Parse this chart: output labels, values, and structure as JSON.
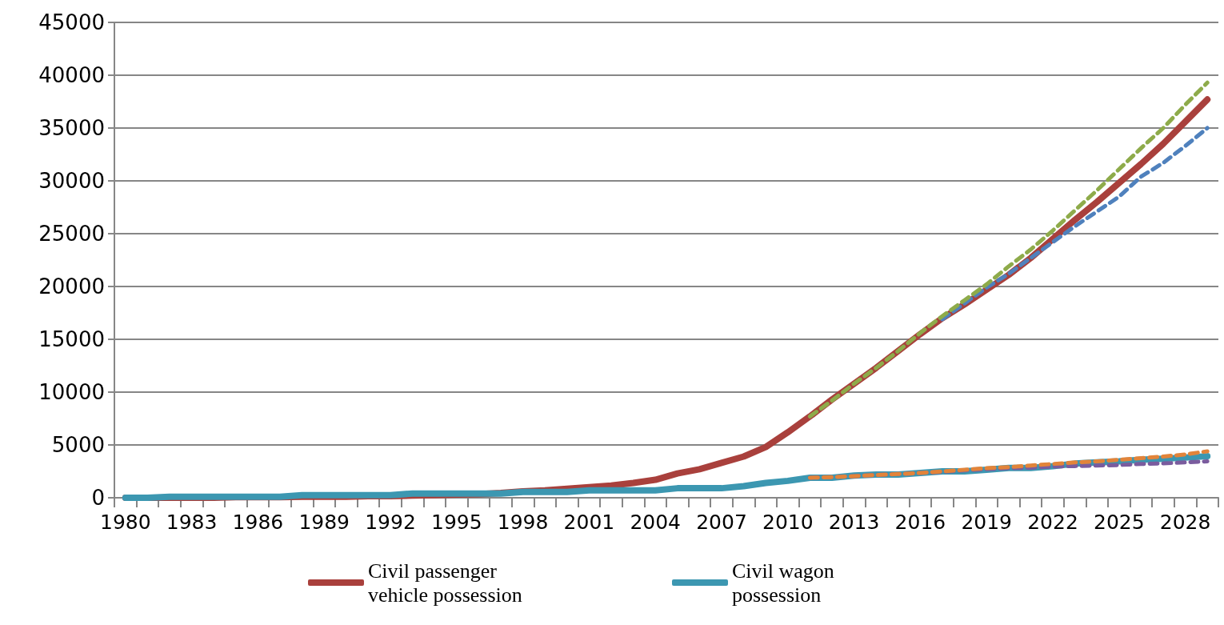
{
  "chart_data": {
    "type": "line",
    "categories": [
      "1980",
      null,
      null,
      "1983",
      null,
      null,
      "1986",
      null,
      null,
      "1989",
      null,
      null,
      "1992",
      null,
      null,
      "1995",
      null,
      null,
      "1998",
      null,
      null,
      "2001",
      null,
      null,
      "2004",
      null,
      null,
      "2007",
      null,
      null,
      "2010",
      null,
      null,
      "2013",
      null,
      null,
      "2016",
      null,
      null,
      "2019",
      null,
      null,
      "2022",
      null,
      null,
      "2025",
      null,
      null,
      "2028",
      null
    ],
    "series": [
      {
        "color": "#4f81bd",
        "line_style": "dashed",
        "values": [
          null,
          null,
          null,
          null,
          null,
          null,
          null,
          null,
          null,
          null,
          null,
          null,
          null,
          null,
          null,
          null,
          null,
          null,
          null,
          null,
          null,
          null,
          null,
          null,
          null,
          null,
          null,
          null,
          null,
          null,
          null,
          null,
          null,
          null,
          null,
          null,
          null,
          16900,
          18400,
          19900,
          21200,
          22700,
          24200,
          25700,
          27100,
          28500,
          30400,
          31700,
          33300,
          35000
        ]
      },
      {
        "name": "Civil passenger vehicle possession",
        "color": "#a9403c",
        "line_style": "solid",
        "values": [
          0,
          0,
          0,
          0,
          0,
          50,
          50,
          50,
          100,
          100,
          100,
          150,
          150,
          200,
          250,
          300,
          350,
          450,
          600,
          700,
          850,
          1000,
          1150,
          1400,
          1700,
          2300,
          2700,
          3300,
          3900,
          4800,
          6200,
          7700,
          9300,
          10800,
          12300,
          13900,
          15500,
          17000,
          18300,
          19700,
          21100,
          22700,
          24500,
          26300,
          28000,
          29800,
          31600,
          33500,
          35600,
          37700
        ]
      },
      {
        "color": "#8eab4a",
        "line_style": "dashed",
        "values": [
          null,
          null,
          null,
          null,
          null,
          null,
          null,
          null,
          null,
          null,
          null,
          null,
          null,
          null,
          null,
          null,
          null,
          null,
          null,
          null,
          null,
          null,
          null,
          null,
          null,
          null,
          null,
          null,
          null,
          null,
          null,
          7700,
          9200,
          10800,
          12300,
          13900,
          15600,
          17200,
          18700,
          20200,
          21900,
          23500,
          25300,
          27200,
          29100,
          31100,
          33100,
          35000,
          37200,
          39300
        ]
      },
      {
        "color": "#7a5c9e",
        "line_style": "dashed",
        "values": [
          null,
          null,
          null,
          null,
          null,
          null,
          null,
          null,
          null,
          null,
          null,
          null,
          null,
          null,
          null,
          null,
          null,
          null,
          null,
          null,
          null,
          null,
          null,
          null,
          null,
          null,
          null,
          null,
          null,
          null,
          null,
          1900,
          1950,
          2050,
          2150,
          2250,
          2350,
          2450,
          2600,
          2700,
          2800,
          2850,
          2950,
          3000,
          3050,
          3100,
          3200,
          3250,
          3350,
          3450
        ]
      },
      {
        "name": "Civil wagon possession",
        "color": "#3c97b1",
        "line_style": "solid",
        "values": [
          0,
          0,
          100,
          100,
          100,
          100,
          100,
          100,
          250,
          250,
          250,
          250,
          250,
          400,
          400,
          400,
          400,
          400,
          550,
          550,
          550,
          700,
          700,
          700,
          700,
          900,
          900,
          900,
          1100,
          1400,
          1600,
          1900,
          1900,
          2100,
          2200,
          2200,
          2350,
          2500,
          2500,
          2650,
          2830,
          2830,
          3000,
          3230,
          3350,
          3450,
          3600,
          3700,
          3800,
          3930
        ]
      },
      {
        "color": "#e2843a",
        "line_style": "dashed",
        "values": [
          null,
          null,
          null,
          null,
          null,
          null,
          null,
          null,
          null,
          null,
          null,
          null,
          null,
          null,
          null,
          null,
          null,
          null,
          null,
          null,
          null,
          null,
          null,
          null,
          null,
          null,
          null,
          null,
          null,
          null,
          null,
          1900,
          1950,
          2050,
          2150,
          2250,
          2350,
          2500,
          2650,
          2800,
          2900,
          3050,
          3200,
          3350,
          3450,
          3600,
          3750,
          3900,
          4100,
          4400
        ]
      }
    ],
    "ylim": [
      0,
      45000
    ],
    "yticks": [
      0,
      5000,
      10000,
      15000,
      20000,
      25000,
      30000,
      35000,
      40000,
      45000
    ],
    "grid": "y",
    "legend": "bottom",
    "marker": "none"
  }
}
